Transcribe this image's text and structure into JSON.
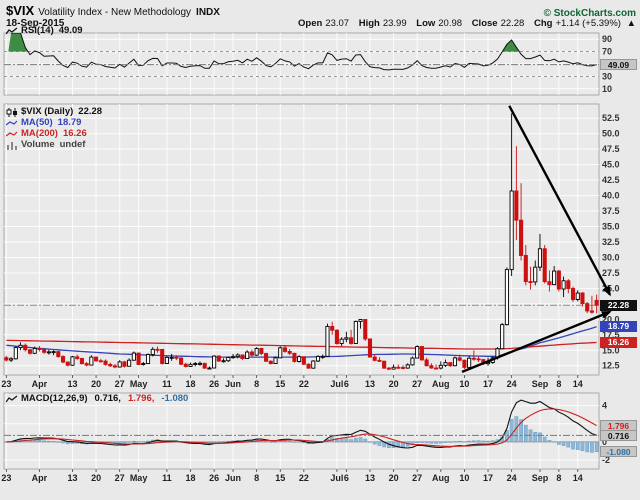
{
  "header": {
    "symbol": "$VIX",
    "name": "Volatility Index - New Methodology",
    "exchange": "INDX",
    "copyright": "© StockCharts.com",
    "date": "18-Sep-2015",
    "quote": {
      "open_label": "Open",
      "open": "23.07",
      "high_label": "High",
      "high": "23.99",
      "low_label": "Low",
      "low": "20.98",
      "close_label": "Close",
      "close": "22.28",
      "chg_label": "Chg",
      "chg": "+1.14 (+5.39%)",
      "arrow": "▲"
    }
  },
  "rsi_panel": {
    "label": "RSI(14)",
    "value": "49.09",
    "ticks": [
      90,
      70,
      30,
      10
    ],
    "overbought": 70,
    "oversold": 30
  },
  "main_panel": {
    "symbol_label": "$VIX (Daily)",
    "last": "22.28",
    "ma50_label": "MA(50)",
    "ma50_value": "18.79",
    "ma200_label": "MA(200)",
    "ma200_value": "16.26",
    "volume_label": "Volume",
    "volume_value": "undef",
    "ticks": [
      52.5,
      50.0,
      47.5,
      45.0,
      42.5,
      40.0,
      37.5,
      35.0,
      32.5,
      30.0,
      27.5,
      25.0,
      22.5,
      20.0,
      17.5,
      15.0,
      12.5
    ]
  },
  "macd_panel": {
    "label": "MACD(12,26,9)",
    "macd_value": "0.716,",
    "signal_value": "1.796,",
    "hist_value": "-1.080",
    "macd_badge": "0.716",
    "signal_badge": "1.796",
    "hist_badge": "-1.080",
    "ticks": [
      4,
      2,
      0,
      -2
    ]
  },
  "x_axis": {
    "labels": [
      [
        "23",
        0
      ],
      [
        "Apr",
        7
      ],
      [
        "13",
        14
      ],
      [
        "20",
        19
      ],
      [
        "27",
        24
      ],
      [
        "May",
        28
      ],
      [
        "11",
        34
      ],
      [
        "18",
        39
      ],
      [
        "26",
        44
      ],
      [
        "Jun",
        48
      ],
      [
        "8",
        53
      ],
      [
        "15",
        58
      ],
      [
        "22",
        63
      ],
      [
        "Jul",
        70
      ],
      [
        "6",
        72
      ],
      [
        "13",
        77
      ],
      [
        "20",
        82
      ],
      [
        "27",
        87
      ],
      [
        "Aug",
        92
      ],
      [
        "10",
        97
      ],
      [
        "17",
        102
      ],
      [
        "24",
        107
      ],
      [
        "Sep",
        113
      ],
      [
        "8",
        117
      ],
      [
        "14",
        121
      ]
    ]
  },
  "colors": {
    "up_candle": "#000000",
    "down_candle": "#cc1111",
    "ma50": "#3344bb",
    "ma200": "#cc2222",
    "macd_hist": "#8fb8d8",
    "macd_hist_edge": "#6e9cc0",
    "macd_line": "#111111",
    "macd_signal": "#cc2222",
    "rsi_line": "#111111",
    "rsi_fill": "#3f8c45",
    "trendline": "#000000",
    "copyright": "#116633"
  },
  "chart_data": {
    "type": "candlestick",
    "title": "$VIX (Daily)",
    "main_ylim": [
      11,
      54.8
    ],
    "rsi_ylim": [
      0,
      100
    ],
    "macd_ylim": [
      -3.0,
      5.4
    ],
    "candle_format": [
      "date",
      "open",
      "high",
      "low",
      "close"
    ],
    "candles": [
      [
        "Mar-23",
        13.8,
        14.1,
        13.2,
        13.41
      ],
      [
        "Mar-24",
        13.41,
        13.9,
        13.1,
        13.62
      ],
      [
        "Mar-25",
        13.62,
        15.6,
        13.5,
        15.44
      ],
      [
        "Mar-26",
        15.44,
        16.28,
        15.0,
        15.8
      ],
      [
        "Mar-27",
        15.8,
        16.1,
        14.8,
        15.07
      ],
      [
        "Mar-30",
        15.07,
        15.2,
        14.3,
        14.51
      ],
      [
        "Mar-31",
        14.51,
        15.6,
        14.4,
        15.29
      ],
      [
        "Apr-01",
        15.29,
        15.7,
        14.8,
        15.11
      ],
      [
        "Apr-02",
        15.11,
        15.3,
        14.4,
        14.67
      ],
      [
        "Apr-06",
        14.67,
        15.1,
        14.3,
        14.74
      ],
      [
        "Apr-07",
        14.74,
        15.0,
        14.2,
        14.78
      ],
      [
        "Apr-08",
        14.78,
        14.9,
        13.8,
        13.98
      ],
      [
        "Apr-09",
        13.98,
        14.2,
        12.9,
        13.09
      ],
      [
        "Apr-10",
        13.09,
        13.2,
        12.4,
        12.58
      ],
      [
        "Apr-13",
        12.58,
        14.1,
        12.5,
        13.94
      ],
      [
        "Apr-14",
        13.94,
        14.3,
        13.4,
        13.67
      ],
      [
        "Apr-15",
        13.67,
        13.8,
        12.7,
        12.84
      ],
      [
        "Apr-16",
        12.84,
        13.1,
        12.4,
        12.6
      ],
      [
        "Apr-17",
        12.6,
        14.2,
        12.6,
        13.89
      ],
      [
        "Apr-20",
        13.89,
        14.0,
        13.1,
        13.3
      ],
      [
        "Apr-21",
        13.3,
        13.6,
        13.0,
        13.25
      ],
      [
        "Apr-22",
        13.25,
        13.5,
        12.5,
        12.71
      ],
      [
        "Apr-23",
        12.71,
        13.0,
        12.3,
        12.48
      ],
      [
        "Apr-24",
        12.48,
        12.8,
        12.1,
        12.29
      ],
      [
        "Apr-27",
        12.29,
        13.4,
        12.2,
        13.12
      ],
      [
        "Apr-28",
        13.12,
        13.3,
        12.2,
        12.41
      ],
      [
        "Apr-29",
        12.41,
        13.7,
        12.4,
        13.39
      ],
      [
        "Apr-30",
        13.39,
        14.8,
        13.3,
        14.55
      ],
      [
        "May-01",
        14.55,
        14.6,
        12.6,
        12.7
      ],
      [
        "May-04",
        12.7,
        13.1,
        12.5,
        12.85
      ],
      [
        "May-05",
        12.85,
        14.5,
        12.8,
        14.31
      ],
      [
        "May-06",
        14.31,
        15.5,
        14.0,
        15.15
      ],
      [
        "May-07",
        15.15,
        15.6,
        14.6,
        15.13
      ],
      [
        "May-08",
        15.13,
        15.2,
        12.7,
        12.86
      ],
      [
        "May-11",
        12.86,
        14.0,
        12.8,
        13.85
      ],
      [
        "May-12",
        13.85,
        14.4,
        13.3,
        13.86
      ],
      [
        "May-13",
        13.86,
        14.2,
        13.4,
        13.76
      ],
      [
        "May-14",
        13.76,
        13.8,
        12.6,
        12.74
      ],
      [
        "May-15",
        12.74,
        13.0,
        12.2,
        12.38
      ],
      [
        "May-18",
        12.38,
        13.0,
        12.3,
        12.73
      ],
      [
        "May-19",
        12.73,
        13.1,
        12.4,
        12.85
      ],
      [
        "May-20",
        12.85,
        13.2,
        12.5,
        12.88
      ],
      [
        "May-21",
        12.88,
        13.0,
        12.0,
        12.11
      ],
      [
        "May-22",
        12.11,
        12.4,
        11.9,
        12.13
      ],
      [
        "May-26",
        12.13,
        14.2,
        12.1,
        14.06
      ],
      [
        "May-27",
        14.06,
        14.2,
        13.1,
        13.27
      ],
      [
        "May-28",
        13.27,
        13.7,
        13.0,
        13.31
      ],
      [
        "May-29",
        13.31,
        14.0,
        13.1,
        13.84
      ],
      [
        "Jun-01",
        13.84,
        14.4,
        13.6,
        13.97
      ],
      [
        "Jun-02",
        13.97,
        14.5,
        13.7,
        14.24
      ],
      [
        "Jun-03",
        14.24,
        14.3,
        13.4,
        13.66
      ],
      [
        "Jun-04",
        13.66,
        15.0,
        13.6,
        14.71
      ],
      [
        "Jun-05",
        14.71,
        15.1,
        13.9,
        14.21
      ],
      [
        "Jun-08",
        14.21,
        15.5,
        14.1,
        15.29
      ],
      [
        "Jun-09",
        15.29,
        15.4,
        14.2,
        14.47
      ],
      [
        "Jun-10",
        14.47,
        14.6,
        13.1,
        13.22
      ],
      [
        "Jun-11",
        13.22,
        13.4,
        12.7,
        12.85
      ],
      [
        "Jun-12",
        12.85,
        14.0,
        12.8,
        13.78
      ],
      [
        "Jun-15",
        13.78,
        15.6,
        13.7,
        15.39
      ],
      [
        "Jun-16",
        15.39,
        15.7,
        14.6,
        14.81
      ],
      [
        "Jun-17",
        14.81,
        15.2,
        14.2,
        14.5
      ],
      [
        "Jun-18",
        14.5,
        14.6,
        13.0,
        13.19
      ],
      [
        "Jun-19",
        13.19,
        14.2,
        13.0,
        13.96
      ],
      [
        "Jun-22",
        13.96,
        14.0,
        12.6,
        12.74
      ],
      [
        "Jun-23",
        12.74,
        12.9,
        12.0,
        12.11
      ],
      [
        "Jun-24",
        12.11,
        13.4,
        12.0,
        13.26
      ],
      [
        "Jun-25",
        13.26,
        14.2,
        13.1,
        14.01
      ],
      [
        "Jun-26",
        14.01,
        14.3,
        13.6,
        14.02
      ],
      [
        "Jun-29",
        14.02,
        19.3,
        14.0,
        18.85
      ],
      [
        "Jun-30",
        18.85,
        19.6,
        17.5,
        18.23
      ],
      [
        "Jul-01",
        18.23,
        18.4,
        15.9,
        16.09
      ],
      [
        "Jul-02",
        16.09,
        17.1,
        15.7,
        16.79
      ],
      [
        "Jul-06",
        16.79,
        18.0,
        16.3,
        17.01
      ],
      [
        "Jul-07",
        17.01,
        18.3,
        15.9,
        16.09
      ],
      [
        "Jul-08",
        16.09,
        19.8,
        16.0,
        19.66
      ],
      [
        "Jul-09",
        19.66,
        20.05,
        18.5,
        19.97
      ],
      [
        "Jul-10",
        19.97,
        20.0,
        16.5,
        16.83
      ],
      [
        "Jul-13",
        16.83,
        16.9,
        13.8,
        13.9
      ],
      [
        "Jul-14",
        13.9,
        14.4,
        13.2,
        13.37
      ],
      [
        "Jul-15",
        13.37,
        13.9,
        13.1,
        13.23
      ],
      [
        "Jul-16",
        13.23,
        13.3,
        12.0,
        12.11
      ],
      [
        "Jul-17",
        12.11,
        12.3,
        11.8,
        11.95
      ],
      [
        "Jul-20",
        11.95,
        12.7,
        11.9,
        12.25
      ],
      [
        "Jul-21",
        12.25,
        12.7,
        12.0,
        12.22
      ],
      [
        "Jul-22",
        12.22,
        12.6,
        11.9,
        12.12
      ],
      [
        "Jul-23",
        12.12,
        12.9,
        12.0,
        12.64
      ],
      [
        "Jul-24",
        12.64,
        14.0,
        12.5,
        13.74
      ],
      [
        "Jul-27",
        13.74,
        15.8,
        13.7,
        15.6
      ],
      [
        "Jul-28",
        15.6,
        15.7,
        13.3,
        13.44
      ],
      [
        "Jul-29",
        13.44,
        13.8,
        12.4,
        12.5
      ],
      [
        "Jul-30",
        12.5,
        12.9,
        12.0,
        12.13
      ],
      [
        "Jul-31",
        12.13,
        12.7,
        11.9,
        12.12
      ],
      [
        "Aug-03",
        12.12,
        13.2,
        11.9,
        12.56
      ],
      [
        "Aug-04",
        12.56,
        13.5,
        12.3,
        13.0
      ],
      [
        "Aug-05",
        13.0,
        13.1,
        12.3,
        12.51
      ],
      [
        "Aug-06",
        12.51,
        14.0,
        12.4,
        13.77
      ],
      [
        "Aug-07",
        13.77,
        14.3,
        13.2,
        13.39
      ],
      [
        "Aug-10",
        13.39,
        13.5,
        11.97,
        12.23
      ],
      [
        "Aug-11",
        12.23,
        14.1,
        12.2,
        13.71
      ],
      [
        "Aug-12",
        13.71,
        15.0,
        13.3,
        13.61
      ],
      [
        "Aug-13",
        13.61,
        14.0,
        13.1,
        13.49
      ],
      [
        "Aug-14",
        13.49,
        13.6,
        12.6,
        12.83
      ],
      [
        "Aug-17",
        12.83,
        13.8,
        12.5,
        13.02
      ],
      [
        "Aug-18",
        13.02,
        14.0,
        12.8,
        13.79
      ],
      [
        "Aug-19",
        13.79,
        15.5,
        13.5,
        15.25
      ],
      [
        "Aug-20",
        15.25,
        19.4,
        15.2,
        19.14
      ],
      [
        "Aug-21",
        19.14,
        28.38,
        19.0,
        28.03
      ],
      [
        "Aug-24",
        28.03,
        53.29,
        27.0,
        40.74
      ],
      [
        "Aug-25",
        40.74,
        48.0,
        32.8,
        36.02
      ],
      [
        "Aug-26",
        36.02,
        42.0,
        29.5,
        30.32
      ],
      [
        "Aug-27",
        30.32,
        32.0,
        25.5,
        26.1
      ],
      [
        "Aug-28",
        26.1,
        28.5,
        24.8,
        26.05
      ],
      [
        "Aug-31",
        26.05,
        29.5,
        25.5,
        28.43
      ],
      [
        "Sep-01",
        28.43,
        33.8,
        27.8,
        31.4
      ],
      [
        "Sep-02",
        31.4,
        32.0,
        25.8,
        26.09
      ],
      [
        "Sep-03",
        26.09,
        27.9,
        24.5,
        25.61
      ],
      [
        "Sep-04",
        25.61,
        28.6,
        25.5,
        27.8
      ],
      [
        "Sep-08",
        27.8,
        28.0,
        24.5,
        24.9
      ],
      [
        "Sep-09",
        24.9,
        26.9,
        23.6,
        26.23
      ],
      [
        "Sep-10",
        26.23,
        26.5,
        24.2,
        24.98
      ],
      [
        "Sep-11",
        24.98,
        25.3,
        22.8,
        23.2
      ],
      [
        "Sep-14",
        23.2,
        24.7,
        22.9,
        24.25
      ],
      [
        "Sep-15",
        24.25,
        24.4,
        22.1,
        22.54
      ],
      [
        "Sep-16",
        22.54,
        22.8,
        21.0,
        21.35
      ],
      [
        "Sep-17",
        21.35,
        23.8,
        20.9,
        21.14
      ],
      [
        "Sep-18",
        23.07,
        23.99,
        20.98,
        22.28
      ]
    ],
    "ma50": [
      [
        0,
        15.8
      ],
      [
        7,
        15.3
      ],
      [
        14,
        14.9
      ],
      [
        24,
        14.4
      ],
      [
        34,
        14.1
      ],
      [
        44,
        13.9
      ],
      [
        53,
        13.9
      ],
      [
        63,
        13.9
      ],
      [
        70,
        14.0
      ],
      [
        77,
        14.3
      ],
      [
        85,
        14.4
      ],
      [
        91,
        14.3
      ],
      [
        97,
        14.1
      ],
      [
        104,
        14.0
      ],
      [
        107,
        14.8
      ],
      [
        110,
        15.4
      ],
      [
        113,
        16.2
      ],
      [
        117,
        17.0
      ],
      [
        121,
        17.9
      ],
      [
        125,
        18.79
      ]
    ],
    "ma200": [
      [
        0,
        16.6
      ],
      [
        14,
        16.4
      ],
      [
        28,
        16.2
      ],
      [
        48,
        15.9
      ],
      [
        68,
        15.6
      ],
      [
        82,
        15.4
      ],
      [
        91,
        15.3
      ],
      [
        97,
        15.2
      ],
      [
        104,
        15.2
      ],
      [
        107,
        15.3
      ],
      [
        112,
        15.6
      ],
      [
        117,
        15.9
      ],
      [
        121,
        16.1
      ],
      [
        125,
        16.26
      ]
    ],
    "trendlines": [
      [
        106.5,
        54.5,
        127.8,
        24.0
      ],
      [
        96.5,
        11.5,
        127.8,
        21.2
      ]
    ],
    "indicators": {
      "rsi_period": 14,
      "rsi_last": 49.09,
      "macd_params": [
        12,
        26,
        9
      ],
      "macd_last": [
        0.716,
        1.796,
        -1.08
      ]
    }
  }
}
